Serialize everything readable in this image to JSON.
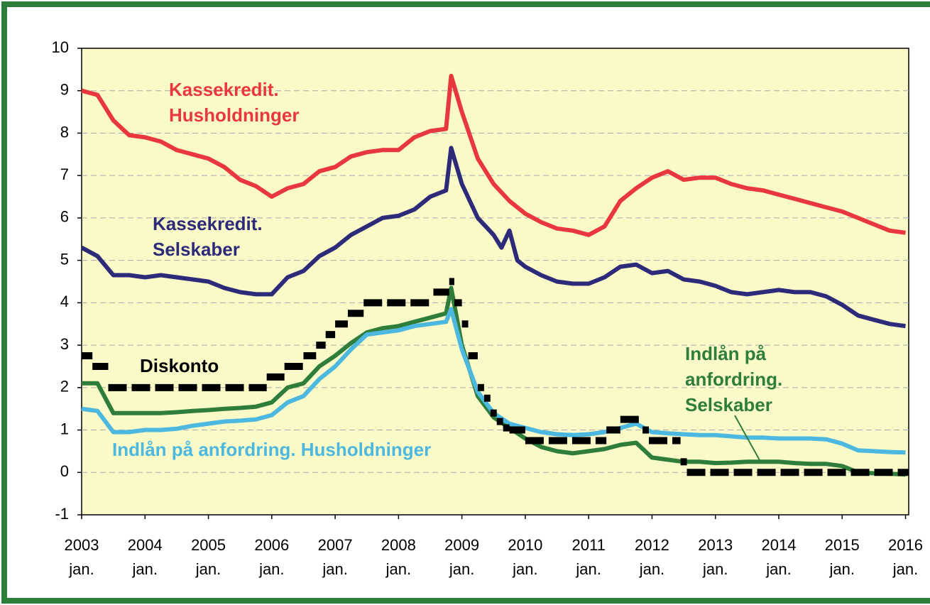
{
  "chart_data": {
    "type": "line",
    "xlim": [
      2003,
      2016.05
    ],
    "ylim": [
      -1,
      10
    ],
    "yticks": [
      -1,
      0,
      1,
      2,
      3,
      4,
      5,
      6,
      7,
      8,
      9,
      10
    ],
    "xticks": [
      {
        "value": 2003,
        "label": "2003",
        "sublabel": "jan."
      },
      {
        "value": 2004,
        "label": "2004",
        "sublabel": "jan."
      },
      {
        "value": 2005,
        "label": "2005",
        "sublabel": "jan."
      },
      {
        "value": 2006,
        "label": "2006",
        "sublabel": "jan."
      },
      {
        "value": 2007,
        "label": "2007",
        "sublabel": "jan."
      },
      {
        "value": 2008,
        "label": "2008",
        "sublabel": "jan."
      },
      {
        "value": 2009,
        "label": "2009",
        "sublabel": "jan."
      },
      {
        "value": 2010,
        "label": "2010",
        "sublabel": "jan."
      },
      {
        "value": 2011,
        "label": "2011",
        "sublabel": "jan."
      },
      {
        "value": 2012,
        "label": "2012",
        "sublabel": "jan."
      },
      {
        "value": 2013,
        "label": "2013",
        "sublabel": "jan."
      },
      {
        "value": 2014,
        "label": "2014",
        "sublabel": "jan."
      },
      {
        "value": 2015,
        "label": "2015",
        "sublabel": "jan."
      },
      {
        "value": 2016,
        "label": "2016",
        "sublabel": "jan."
      }
    ],
    "grid": true,
    "series": [
      {
        "name_lines": [
          "Kassekredit.",
          "Husholdninger"
        ],
        "color": "#e8383d",
        "x": [
          2003,
          2003.25,
          2003.5,
          2003.75,
          2004,
          2004.25,
          2004.5,
          2004.75,
          2005,
          2005.25,
          2005.5,
          2005.75,
          2006,
          2006.25,
          2006.5,
          2006.75,
          2007,
          2007.25,
          2007.5,
          2007.75,
          2008,
          2008.25,
          2008.5,
          2008.75,
          2008.83,
          2009,
          2009.25,
          2009.5,
          2009.75,
          2010,
          2010.25,
          2010.5,
          2010.75,
          2011,
          2011.25,
          2011.5,
          2011.75,
          2012,
          2012.25,
          2012.5,
          2012.75,
          2013,
          2013.25,
          2013.5,
          2013.75,
          2014,
          2014.25,
          2014.5,
          2014.75,
          2015,
          2015.25,
          2015.5,
          2015.75,
          2016
        ],
        "values": [
          9.0,
          8.9,
          8.3,
          7.95,
          7.9,
          7.8,
          7.6,
          7.5,
          7.4,
          7.2,
          6.9,
          6.75,
          6.5,
          6.7,
          6.8,
          7.1,
          7.2,
          7.45,
          7.55,
          7.6,
          7.6,
          7.9,
          8.05,
          8.1,
          9.35,
          8.5,
          7.4,
          6.8,
          6.4,
          6.1,
          5.9,
          5.75,
          5.7,
          5.6,
          5.8,
          6.4,
          6.7,
          6.95,
          7.1,
          6.9,
          6.95,
          6.95,
          6.8,
          6.7,
          6.65,
          6.55,
          6.45,
          6.35,
          6.25,
          6.15,
          6.0,
          5.85,
          5.7,
          5.65
        ]
      },
      {
        "name_lines": [
          "Kassekredit.",
          "Selskaber"
        ],
        "color": "#2e2a7a",
        "x": [
          2003,
          2003.25,
          2003.5,
          2003.75,
          2004,
          2004.25,
          2004.5,
          2004.75,
          2005,
          2005.25,
          2005.5,
          2005.75,
          2006,
          2006.25,
          2006.5,
          2006.75,
          2007,
          2007.25,
          2007.5,
          2007.75,
          2008,
          2008.25,
          2008.5,
          2008.75,
          2008.83,
          2009,
          2009.25,
          2009.5,
          2009.625,
          2009.75,
          2009.875,
          2010,
          2010.25,
          2010.5,
          2010.75,
          2011,
          2011.25,
          2011.5,
          2011.75,
          2012,
          2012.25,
          2012.5,
          2012.75,
          2013,
          2013.25,
          2013.5,
          2013.75,
          2014,
          2014.25,
          2014.5,
          2014.75,
          2015,
          2015.25,
          2015.5,
          2015.75,
          2016
        ],
        "values": [
          5.3,
          5.1,
          4.65,
          4.65,
          4.6,
          4.65,
          4.6,
          4.55,
          4.5,
          4.35,
          4.25,
          4.2,
          4.2,
          4.6,
          4.75,
          5.1,
          5.3,
          5.6,
          5.8,
          6.0,
          6.05,
          6.2,
          6.5,
          6.65,
          7.65,
          6.8,
          6.0,
          5.6,
          5.3,
          5.7,
          5.0,
          4.85,
          4.65,
          4.5,
          4.45,
          4.45,
          4.6,
          4.85,
          4.9,
          4.7,
          4.75,
          4.55,
          4.5,
          4.4,
          4.25,
          4.2,
          4.25,
          4.3,
          4.25,
          4.25,
          4.15,
          3.95,
          3.7,
          3.6,
          3.5,
          3.45
        ]
      },
      {
        "name_lines": [
          "Indlån på",
          "anfordring.",
          "Selskaber"
        ],
        "color": "#2e7d3a",
        "x": [
          2003,
          2003.25,
          2003.5,
          2003.75,
          2004,
          2004.25,
          2004.5,
          2004.75,
          2005,
          2005.25,
          2005.5,
          2005.75,
          2006,
          2006.25,
          2006.5,
          2006.75,
          2007,
          2007.25,
          2007.5,
          2007.75,
          2008,
          2008.25,
          2008.5,
          2008.75,
          2008.83,
          2009,
          2009.25,
          2009.5,
          2009.75,
          2010,
          2010.25,
          2010.5,
          2010.75,
          2011,
          2011.25,
          2011.5,
          2011.75,
          2012,
          2012.25,
          2012.5,
          2012.75,
          2013,
          2013.25,
          2013.5,
          2013.75,
          2014,
          2014.25,
          2014.5,
          2014.75,
          2015,
          2015.25,
          2015.5,
          2015.75,
          2016
        ],
        "values": [
          2.1,
          2.1,
          1.4,
          1.4,
          1.4,
          1.4,
          1.42,
          1.45,
          1.47,
          1.5,
          1.52,
          1.55,
          1.65,
          2.0,
          2.1,
          2.5,
          2.75,
          3.05,
          3.3,
          3.4,
          3.45,
          3.55,
          3.65,
          3.75,
          4.35,
          3.0,
          1.8,
          1.3,
          1.05,
          0.8,
          0.6,
          0.5,
          0.45,
          0.5,
          0.55,
          0.65,
          0.7,
          0.35,
          0.3,
          0.25,
          0.25,
          0.22,
          0.23,
          0.25,
          0.25,
          0.25,
          0.22,
          0.2,
          0.2,
          0.15,
          0.0,
          -0.02,
          -0.03,
          -0.05
        ]
      },
      {
        "name_lines": [
          "Indlån på anfordring. Husholdninger"
        ],
        "color": "#4cb8e0",
        "x": [
          2003,
          2003.25,
          2003.5,
          2003.75,
          2004,
          2004.25,
          2004.5,
          2004.75,
          2005,
          2005.25,
          2005.5,
          2005.75,
          2006,
          2006.25,
          2006.5,
          2006.75,
          2007,
          2007.25,
          2007.5,
          2007.75,
          2008,
          2008.25,
          2008.5,
          2008.75,
          2008.83,
          2009,
          2009.25,
          2009.5,
          2009.75,
          2010,
          2010.25,
          2010.5,
          2010.75,
          2011,
          2011.25,
          2011.5,
          2011.75,
          2012,
          2012.25,
          2012.5,
          2012.75,
          2013,
          2013.25,
          2013.5,
          2013.75,
          2014,
          2014.25,
          2014.5,
          2014.75,
          2015,
          2015.25,
          2015.5,
          2015.75,
          2016
        ],
        "values": [
          1.5,
          1.45,
          0.95,
          0.95,
          1.0,
          1.0,
          1.03,
          1.1,
          1.15,
          1.2,
          1.22,
          1.25,
          1.35,
          1.65,
          1.8,
          2.2,
          2.5,
          2.9,
          3.25,
          3.3,
          3.35,
          3.45,
          3.5,
          3.55,
          3.85,
          2.9,
          1.9,
          1.4,
          1.15,
          1.05,
          0.95,
          0.9,
          0.88,
          0.9,
          0.95,
          1.05,
          1.15,
          0.95,
          0.92,
          0.9,
          0.88,
          0.88,
          0.85,
          0.82,
          0.82,
          0.8,
          0.8,
          0.8,
          0.78,
          0.68,
          0.52,
          0.5,
          0.48,
          0.47
        ]
      },
      {
        "name_lines": [
          "Diskonto"
        ],
        "color": "#000000",
        "step": "after",
        "x": [
          2003,
          2003.17,
          2003.42,
          2005.92,
          2006.2,
          2006.5,
          2006.7,
          2006.85,
          2007.0,
          2007.2,
          2007.45,
          2008.55,
          2008.8,
          2008.88,
          2009.0,
          2009.1,
          2009.25,
          2009.35,
          2009.45,
          2009.55,
          2009.65,
          2009.75,
          2010.0,
          2011.28,
          2011.5,
          2011.85,
          2011.95,
          2012.45,
          2012.55
        ],
        "values": [
          2.75,
          2.5,
          2.0,
          2.25,
          2.5,
          2.75,
          3.0,
          3.25,
          3.5,
          3.75,
          4.0,
          4.25,
          4.5,
          4.0,
          3.5,
          2.75,
          2.0,
          1.75,
          1.4,
          1.2,
          1.05,
          1.0,
          0.75,
          1.0,
          1.25,
          1.0,
          0.75,
          0.25,
          0.0
        ]
      }
    ]
  }
}
